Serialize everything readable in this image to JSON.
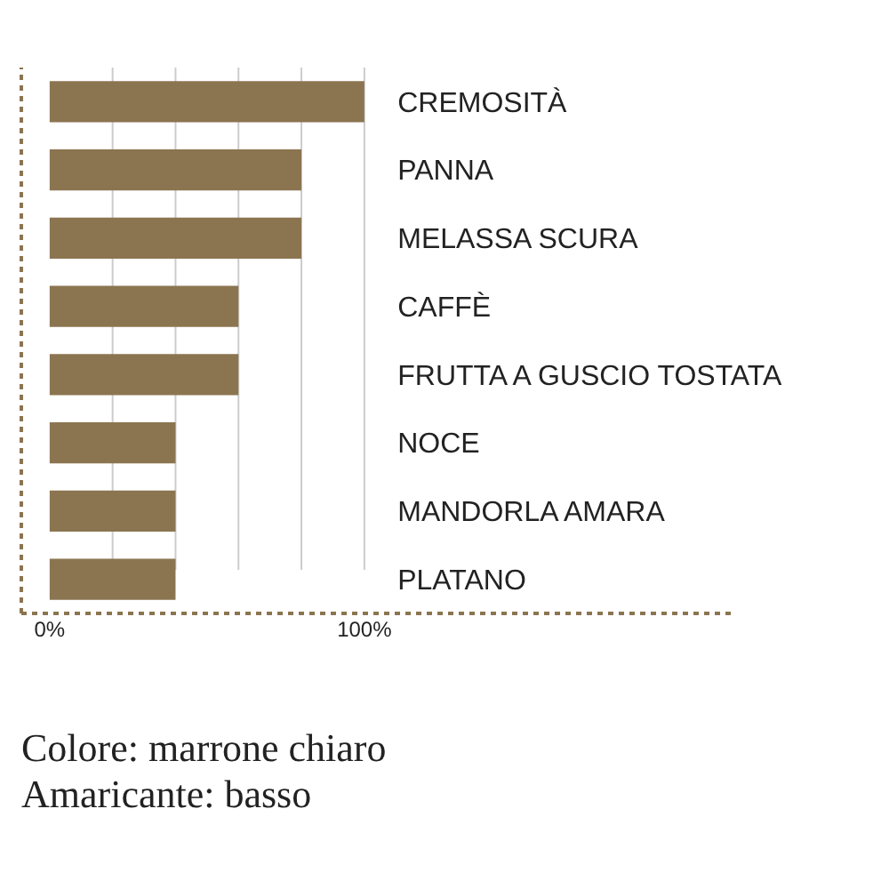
{
  "chart_data": {
    "type": "bar",
    "orientation": "horizontal",
    "categories": [
      "CREMOSITÀ",
      "PANNA",
      "MELASSA SCURA",
      "CAFFÈ",
      "FRUTTA A GUSCIO TOSTATA",
      "NOCE",
      "MANDORLA AMARA",
      "PLATANO"
    ],
    "values": [
      100,
      80,
      80,
      60,
      60,
      40,
      40,
      40
    ],
    "color": "#8b7550",
    "xlim": [
      -9,
      217
    ],
    "xticks": [
      {
        "value": 0,
        "label": "0%"
      },
      {
        "value": 20,
        "label": null
      },
      {
        "value": 40,
        "label": null
      },
      {
        "value": 60,
        "label": null
      },
      {
        "value": 80,
        "label": null
      },
      {
        "value": 100,
        "label": "100%"
      }
    ],
    "grid": "x",
    "annotations": [
      "Colore: marrone chiaro",
      "Amaricante: basso"
    ]
  }
}
